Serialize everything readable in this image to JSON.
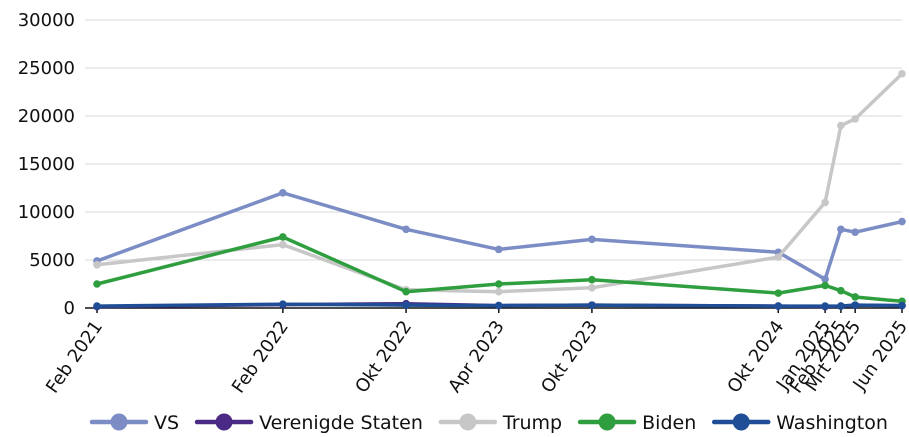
{
  "colors": {
    "VS": "#7b8dc4",
    "Verenigde Staten": "#4b2a86",
    "Trump": "#c7c7c7",
    "Biden": "#2e9e3f",
    "Washington": "#1f4e96",
    "gridline": "#d9d9d9",
    "axis": "#111111"
  },
  "chart_data": {
    "type": "line",
    "title": "",
    "xlabel": "",
    "ylabel": "",
    "ylim": [
      0,
      30000
    ],
    "yticks": [
      0,
      5000,
      10000,
      15000,
      20000,
      25000,
      30000
    ],
    "x_axis_scale": "time",
    "x_tick_labels": [
      "Feb 2021",
      "Feb 2022",
      "Okt 2022",
      "Apr 2023",
      "Okt 2023",
      "Okt 2024",
      "Jan 2025",
      "Feb 2025",
      "Mrt 2025",
      "Jun 2025"
    ],
    "x_tick_dates": [
      "2021-02",
      "2022-02",
      "2022-10",
      "2023-04",
      "2023-10",
      "2024-10",
      "2025-01",
      "2025-02",
      "2025-03",
      "2025-06"
    ],
    "grid": "horizontal",
    "legend_position": "bottom",
    "series": [
      {
        "name": "VS",
        "points": [
          [
            "2021-02-01",
            4900
          ],
          [
            "2022-02-01",
            12000
          ],
          [
            "2022-10-01",
            8200
          ],
          [
            "2023-04-01",
            6100
          ],
          [
            "2023-10-01",
            7150
          ],
          [
            "2024-10-01",
            5800
          ],
          [
            "2025-01-01",
            3000
          ],
          [
            "2025-02-01",
            8200
          ],
          [
            "2025-03-01",
            7900
          ],
          [
            "2025-06-01",
            9000
          ]
        ]
      },
      {
        "name": "Verenigde Staten",
        "points": [
          [
            "2021-02-01",
            150
          ],
          [
            "2022-02-01",
            350
          ],
          [
            "2022-10-01",
            450
          ],
          [
            "2023-04-01",
            250
          ],
          [
            "2023-10-01",
            300
          ],
          [
            "2024-10-01",
            200
          ],
          [
            "2025-01-01",
            150
          ],
          [
            "2025-02-01",
            200
          ],
          [
            "2025-03-01",
            300
          ],
          [
            "2025-06-01",
            250
          ]
        ]
      },
      {
        "name": "Trump",
        "points": [
          [
            "2021-02-01",
            4500
          ],
          [
            "2022-02-01",
            6600
          ],
          [
            "2022-10-01",
            1900
          ],
          [
            "2023-04-01",
            1700
          ],
          [
            "2023-10-01",
            2100
          ],
          [
            "2024-10-01",
            5300
          ],
          [
            "2025-01-01",
            11000
          ],
          [
            "2025-02-01",
            19000
          ],
          [
            "2025-03-01",
            19700
          ],
          [
            "2025-06-01",
            24400
          ]
        ]
      },
      {
        "name": "Biden",
        "points": [
          [
            "2021-02-01",
            2500
          ],
          [
            "2022-02-01",
            7400
          ],
          [
            "2022-10-01",
            1700
          ],
          [
            "2023-04-01",
            2500
          ],
          [
            "2023-10-01",
            2950
          ],
          [
            "2024-10-01",
            1550
          ],
          [
            "2025-01-01",
            2350
          ],
          [
            "2025-02-01",
            1800
          ],
          [
            "2025-03-01",
            1150
          ],
          [
            "2025-06-01",
            700
          ]
        ]
      },
      {
        "name": "Washington",
        "points": [
          [
            "2021-02-01",
            200
          ],
          [
            "2022-02-01",
            400
          ],
          [
            "2022-10-01",
            300
          ],
          [
            "2023-04-01",
            250
          ],
          [
            "2023-10-01",
            300
          ],
          [
            "2024-10-01",
            200
          ],
          [
            "2025-01-01",
            200
          ],
          [
            "2025-02-01",
            200
          ],
          [
            "2025-03-01",
            300
          ],
          [
            "2025-06-01",
            250
          ]
        ]
      }
    ]
  }
}
